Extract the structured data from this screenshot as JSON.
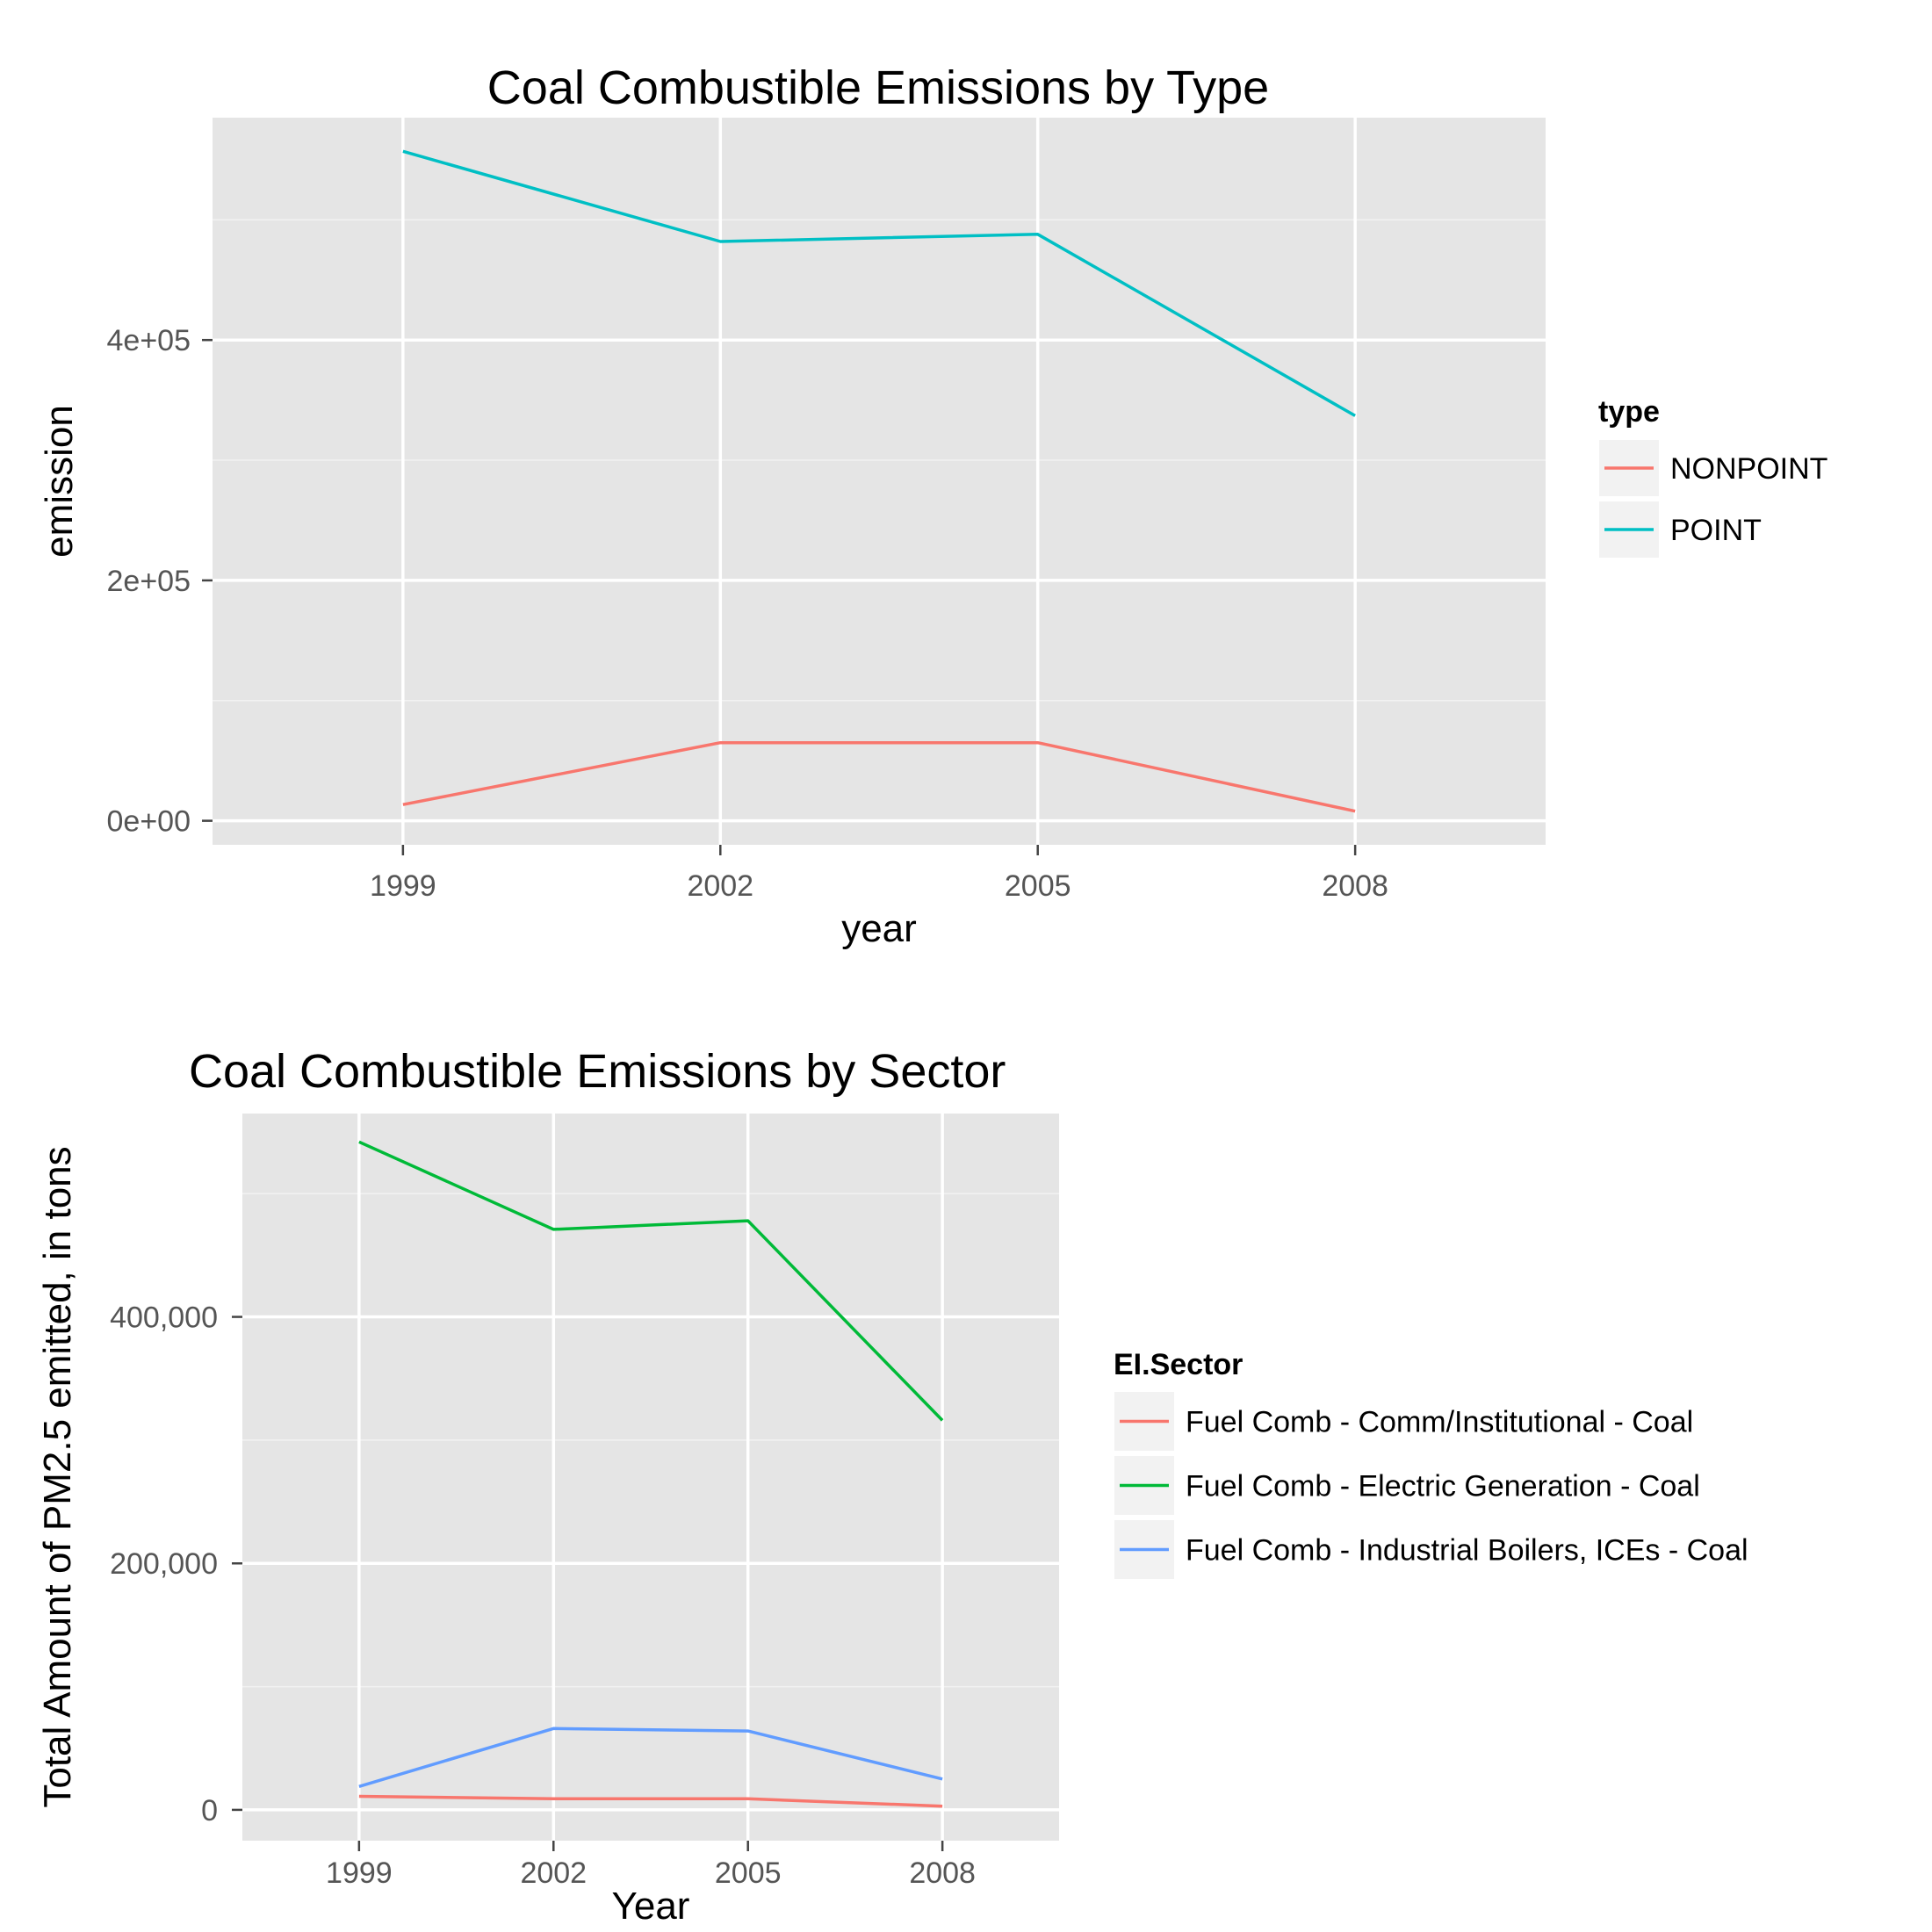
{
  "chart_data": [
    {
      "type": "line",
      "title": "Coal Combustible Emissions by Type",
      "xlabel": "year",
      "ylabel": "emission",
      "x": [
        1999,
        2002,
        2005,
        2008
      ],
      "x_tick_labels": [
        "1999",
        "2002",
        "2005",
        "2008"
      ],
      "xlim": [
        1997.2,
        2009.8
      ],
      "ylim": [
        -20000,
        585000
      ],
      "y_ticks": [
        0,
        200000,
        400000
      ],
      "y_tick_labels": [
        "0e+00",
        "2e+05",
        "4e+05"
      ],
      "grid": true,
      "legend_title": "type",
      "legend_position": "right",
      "series": [
        {
          "name": "NONPOINT",
          "color": "#F8766D",
          "values": [
            13500,
            65000,
            65000,
            8000
          ]
        },
        {
          "name": "POINT",
          "color": "#00BFC4",
          "values": [
            557000,
            482000,
            488000,
            337000
          ]
        }
      ]
    },
    {
      "type": "line",
      "title": "Coal Combustible Emissions by Sector",
      "xlabel": "Year",
      "ylabel": "Total Amount of PM2.5 emitted, in tons",
      "x": [
        1999,
        2002,
        2005,
        2008
      ],
      "x_tick_labels": [
        "1999",
        "2002",
        "2005",
        "2008"
      ],
      "xlim": [
        1997.2,
        2009.8
      ],
      "ylim": [
        -25000,
        565000
      ],
      "y_ticks": [
        0,
        200000,
        400000
      ],
      "y_tick_labels": [
        "0",
        "200,000",
        "400,000"
      ],
      "grid": true,
      "legend_title": "EI.Sector",
      "legend_position": "right",
      "series": [
        {
          "name": "Fuel Comb - Comm/Institutional - Coal",
          "color": "#F8766D",
          "values": [
            11000,
            9000,
            9000,
            3000
          ]
        },
        {
          "name": "Fuel Comb - Electric Generation - Coal",
          "color": "#00BA38",
          "values": [
            542000,
            471000,
            478000,
            316000
          ]
        },
        {
          "name": "Fuel Comb - Industrial Boilers, ICEs - Coal",
          "color": "#619CFF",
          "values": [
            19000,
            66000,
            64000,
            25000
          ]
        }
      ]
    }
  ]
}
